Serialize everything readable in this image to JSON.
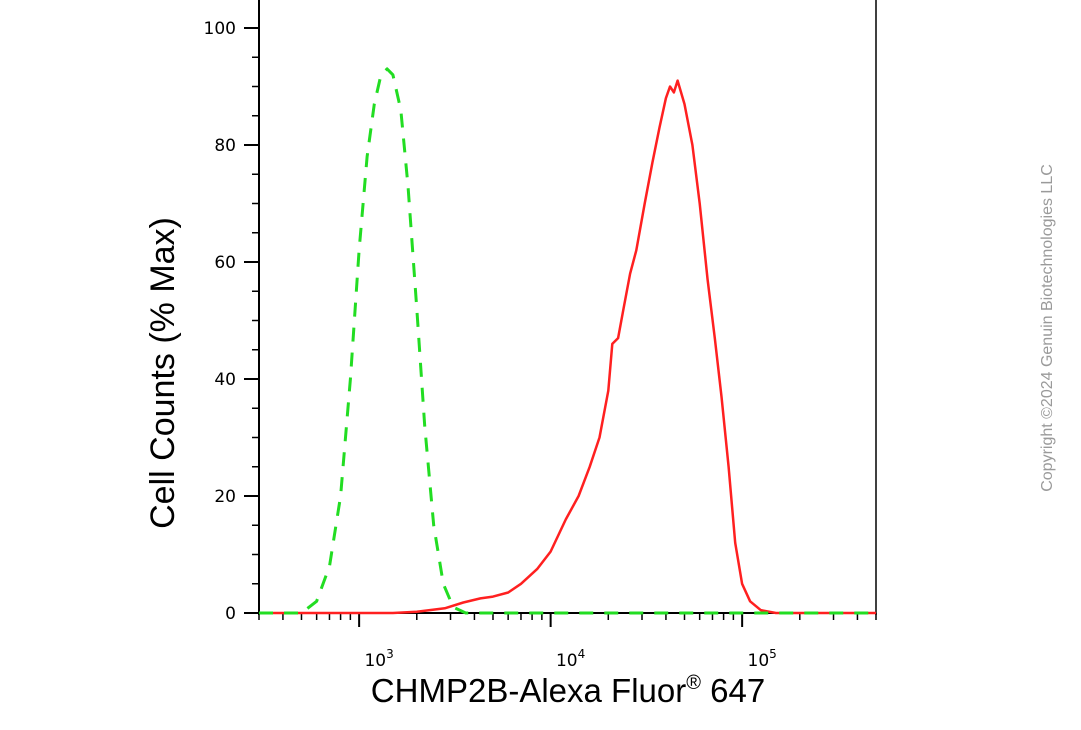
{
  "chart_data": {
    "type": "line",
    "title": "",
    "xlabel": "CHMP2B-Alexa Fluor",
    "xlabel_superscript": "®",
    "xlabel_suffix": " 647",
    "ylabel": "Cell Counts (% Max)",
    "x_scale": "log",
    "xlim": [
      300,
      500000
    ],
    "ylim": [
      0,
      100
    ],
    "y_ticks": [
      0,
      20,
      40,
      60,
      80,
      100
    ],
    "x_ticks": [
      {
        "value": 1000,
        "base": "10",
        "exp": "3"
      },
      {
        "value": 10000,
        "base": "10",
        "exp": "4"
      },
      {
        "value": 100000,
        "base": "10",
        "exp": "5"
      }
    ],
    "grid": false,
    "legend": "none",
    "series": [
      {
        "color": "#ff2020",
        "style": "solid",
        "points": [
          [
            300,
            0
          ],
          [
            1500,
            0
          ],
          [
            2000,
            0.2
          ],
          [
            2800,
            0.8
          ],
          [
            3500,
            1.8
          ],
          [
            4300,
            2.5
          ],
          [
            5000,
            2.8
          ],
          [
            6000,
            3.5
          ],
          [
            7000,
            5
          ],
          [
            8500,
            7.5
          ],
          [
            10000,
            10.5
          ],
          [
            12000,
            16
          ],
          [
            14000,
            20
          ],
          [
            16000,
            25
          ],
          [
            18000,
            30
          ],
          [
            20000,
            38
          ],
          [
            21000,
            46
          ],
          [
            22500,
            47
          ],
          [
            24000,
            52
          ],
          [
            26000,
            58
          ],
          [
            28000,
            62
          ],
          [
            31000,
            70
          ],
          [
            34000,
            77
          ],
          [
            37000,
            83
          ],
          [
            40000,
            88
          ],
          [
            42000,
            90
          ],
          [
            44000,
            89
          ],
          [
            46000,
            91
          ],
          [
            50000,
            87
          ],
          [
            55000,
            80
          ],
          [
            60000,
            70
          ],
          [
            66000,
            57
          ],
          [
            72000,
            47
          ],
          [
            78000,
            37
          ],
          [
            85000,
            25
          ],
          [
            92000,
            12
          ],
          [
            100000,
            5
          ],
          [
            110000,
            2
          ],
          [
            125000,
            0.5
          ],
          [
            150000,
            0
          ],
          [
            500000,
            0
          ]
        ]
      },
      {
        "color": "#22dd22",
        "style": "dashed",
        "points": [
          [
            300,
            0
          ],
          [
            500,
            0
          ],
          [
            600,
            2
          ],
          [
            700,
            8
          ],
          [
            800,
            20
          ],
          [
            900,
            40
          ],
          [
            1000,
            62
          ],
          [
            1100,
            78
          ],
          [
            1200,
            87
          ],
          [
            1300,
            92
          ],
          [
            1400,
            93
          ],
          [
            1500,
            92
          ],
          [
            1650,
            86
          ],
          [
            1800,
            73
          ],
          [
            2000,
            52
          ],
          [
            2200,
            32
          ],
          [
            2450,
            15
          ],
          [
            2750,
            5
          ],
          [
            3100,
            1
          ],
          [
            3600,
            0
          ],
          [
            500000,
            0
          ]
        ]
      }
    ]
  },
  "watermark": "Copyright ©2024 Genuin Biotechnologies LLC"
}
